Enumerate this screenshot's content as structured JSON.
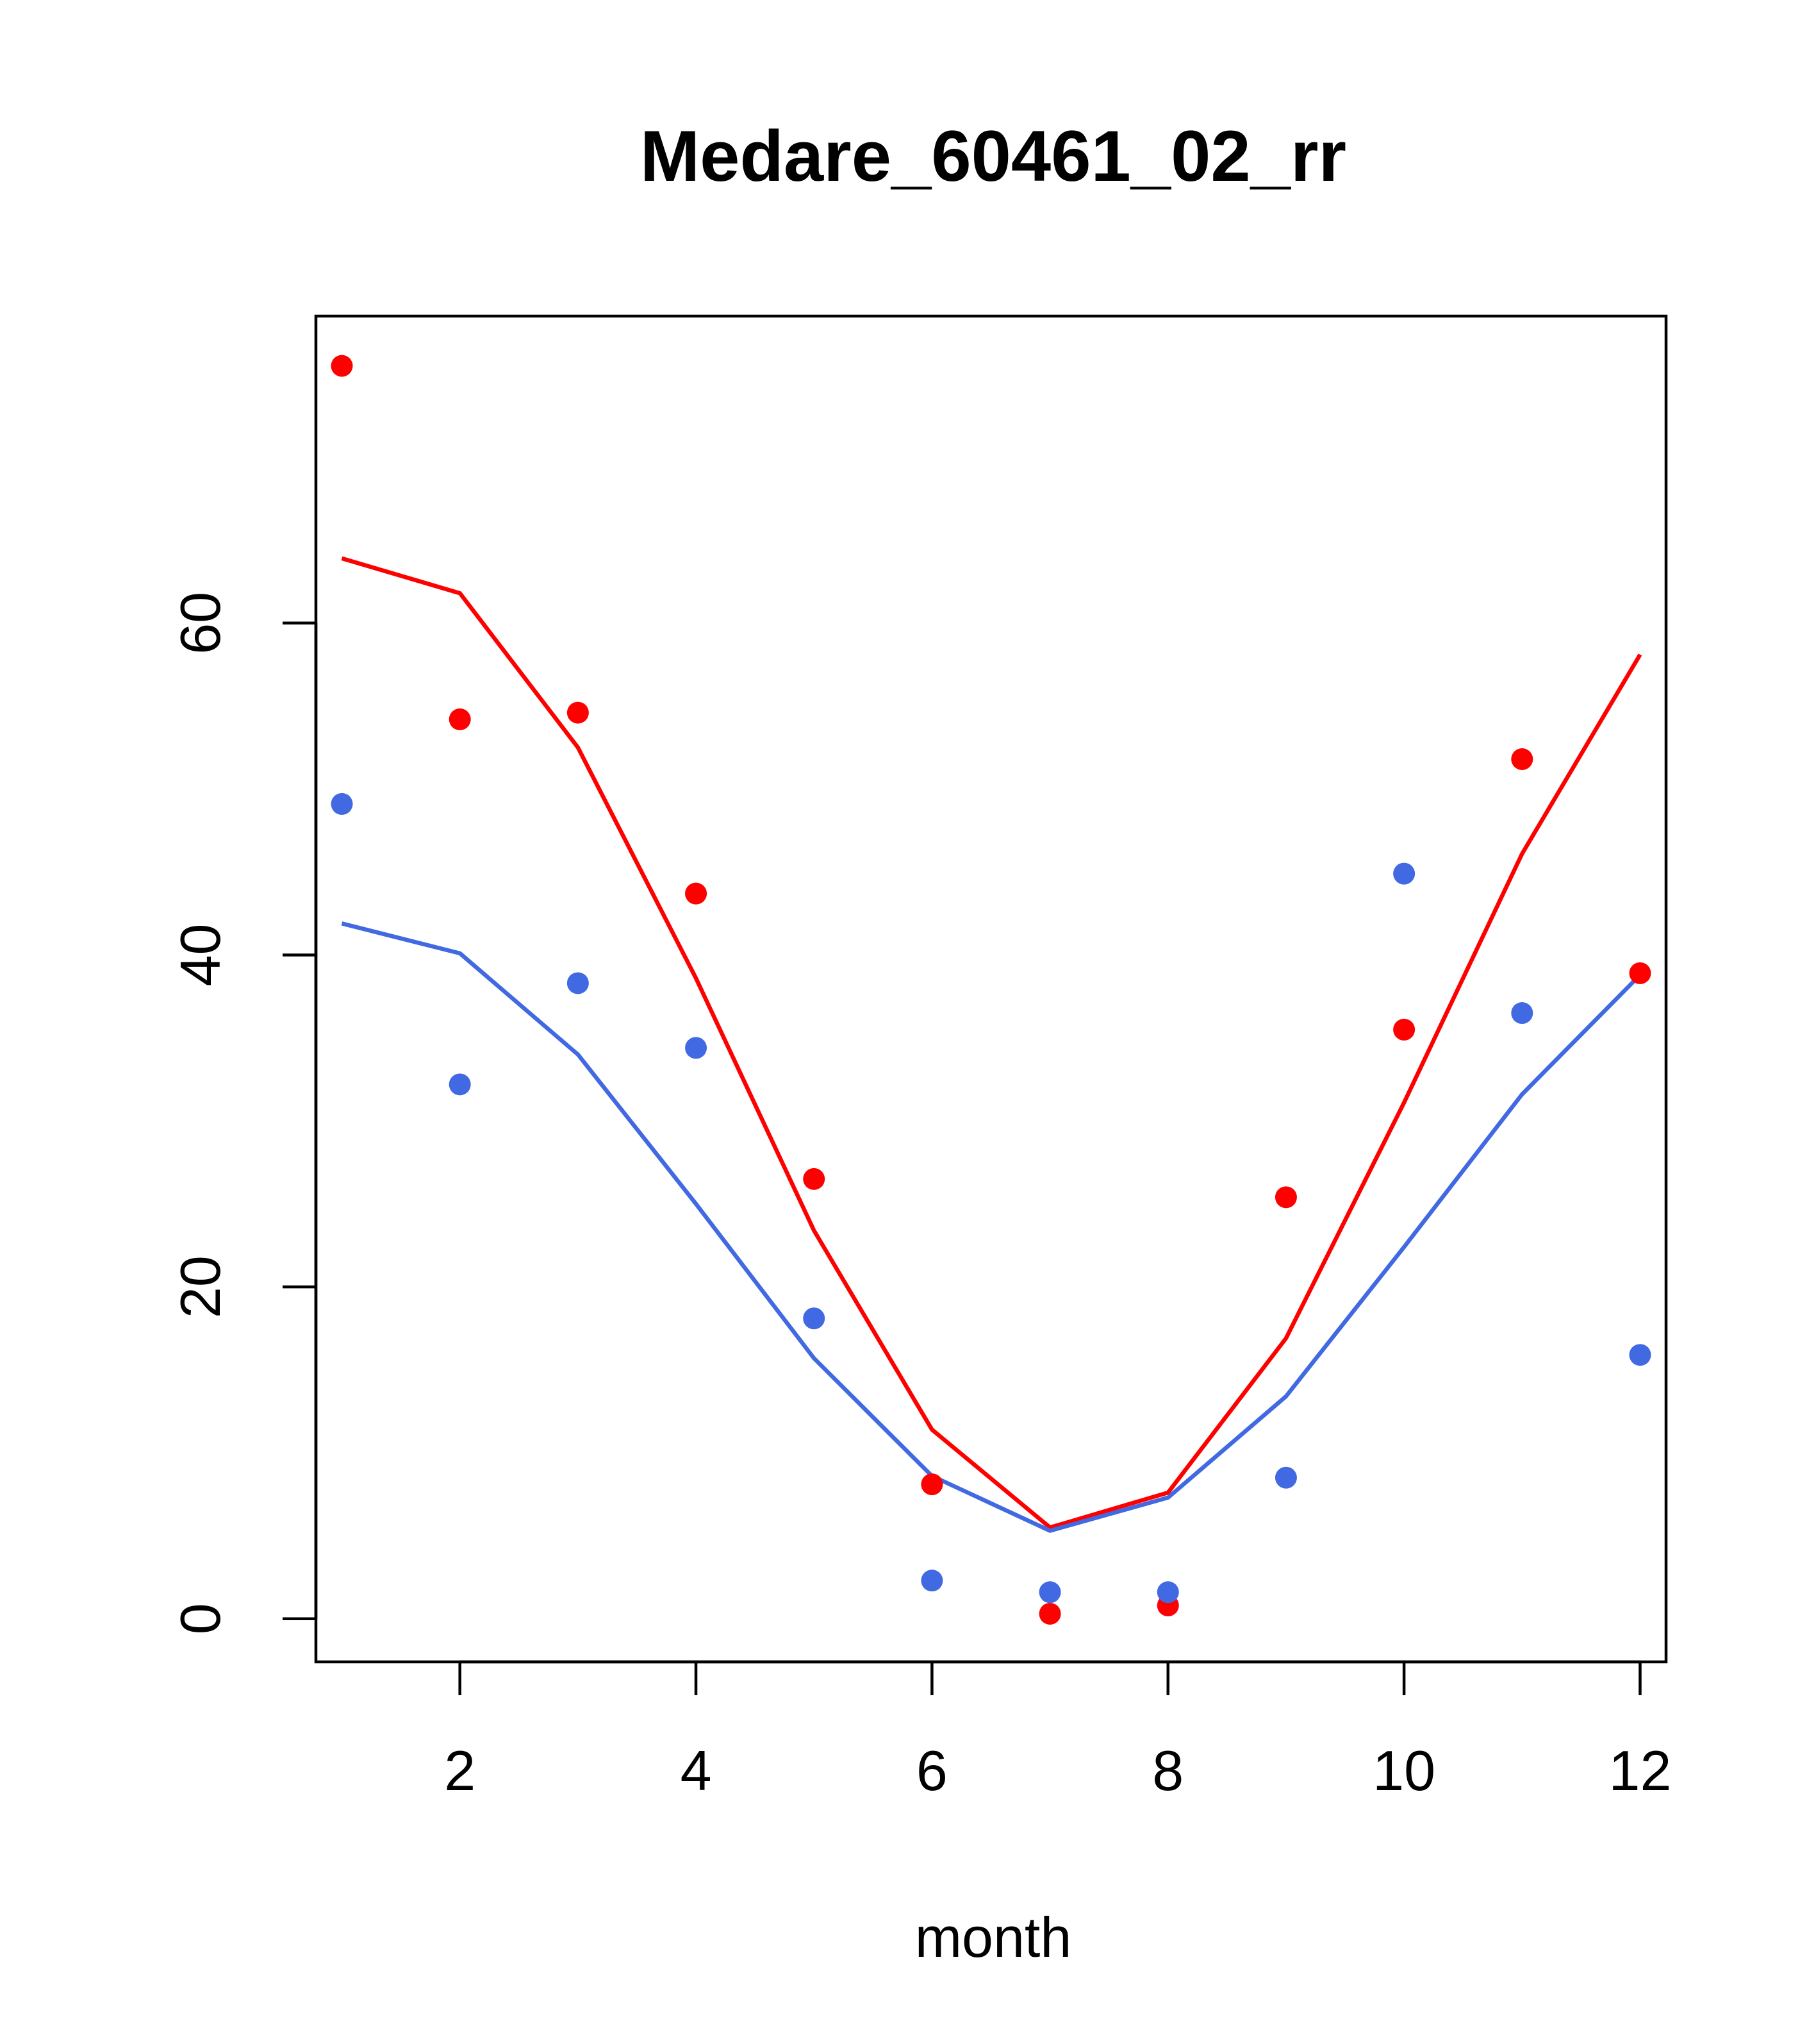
{
  "chart_data": {
    "type": "line",
    "title": "Medare_60461_02_rr",
    "xlabel": "month",
    "ylabel": "",
    "xlim": [
      0.78,
      12.22
    ],
    "ylim": [
      -2.6,
      78.5
    ],
    "x_ticks": [
      2,
      4,
      6,
      8,
      10,
      12
    ],
    "y_ticks": [
      0,
      20,
      40,
      60
    ],
    "grid": false,
    "legend": "none",
    "x": [
      1,
      2,
      3,
      4,
      5,
      6,
      7,
      8,
      9,
      10,
      11,
      12
    ],
    "series": [
      {
        "mark": "points",
        "color": "#ff0000",
        "values": [
          75.5,
          54.2,
          54.6,
          43.7,
          26.5,
          8.1,
          0.3,
          0.8,
          25.4,
          35.5,
          51.8,
          38.9
        ]
      },
      {
        "mark": "points",
        "color": "#4169e1",
        "values": [
          49.1,
          32.2,
          38.3,
          34.4,
          18.1,
          2.3,
          1.6,
          1.6,
          8.5,
          44.9,
          36.5,
          15.9
        ]
      },
      {
        "mark": "line",
        "color": "#ff0000",
        "values": [
          63.9,
          61.8,
          52.5,
          38.6,
          23.4,
          11.4,
          5.5,
          7.6,
          16.9,
          31.1,
          46.1,
          58.1
        ]
      },
      {
        "mark": "line",
        "color": "#4169e1",
        "values": [
          41.9,
          40.1,
          34.0,
          25.0,
          15.7,
          8.6,
          5.3,
          7.3,
          13.4,
          22.4,
          31.6,
          38.8
        ]
      }
    ]
  }
}
